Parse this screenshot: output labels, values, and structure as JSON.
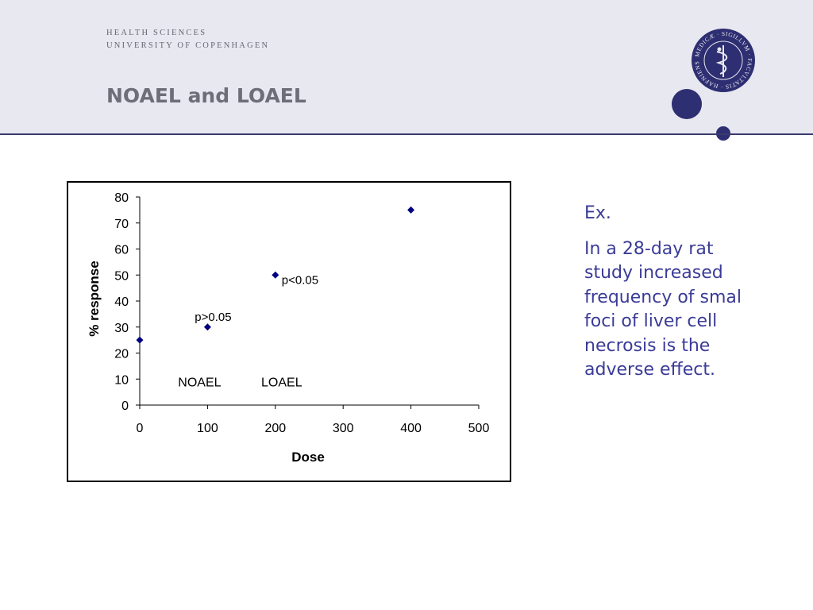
{
  "header": {
    "org_line1": "HEALTH SCIENCES",
    "org_line2": "UNIVERSITY OF COPENHAGEN",
    "title": "NOAEL and LOAEL",
    "seal_icon": "university-seal-icon",
    "seal_text": "MEDICÆ · SIGILLVM · FACVLTATIS · HAFNIENSIS",
    "accent_color": "#2e2e72"
  },
  "chart_data": {
    "type": "scatter",
    "x": [
      0,
      100,
      200,
      400
    ],
    "y": [
      25,
      30,
      50,
      75
    ],
    "xlabel": "Dose",
    "ylabel": "% response",
    "xlim": [
      0,
      500
    ],
    "ylim": [
      0,
      80
    ],
    "xticks": [
      0,
      100,
      200,
      300,
      400,
      500
    ],
    "yticks": [
      0,
      10,
      20,
      30,
      40,
      50,
      60,
      70,
      80
    ],
    "marker": "diamond",
    "marker_color": "#000080",
    "grid": false,
    "annotations": [
      {
        "text": "p>0.05",
        "x": 100,
        "y": 30
      },
      {
        "text": "p<0.05",
        "x": 200,
        "y": 50
      },
      {
        "text": "NOAEL",
        "x": 100,
        "y": 9
      },
      {
        "text": "LOAEL",
        "x": 200,
        "y": 9
      }
    ]
  },
  "side": {
    "lines": [
      "Ex.",
      "In a 28-day rat study increased frequency of smal foci of liver cell necrosis is the adverse effect."
    ],
    "text_color": "#3b3b98"
  }
}
